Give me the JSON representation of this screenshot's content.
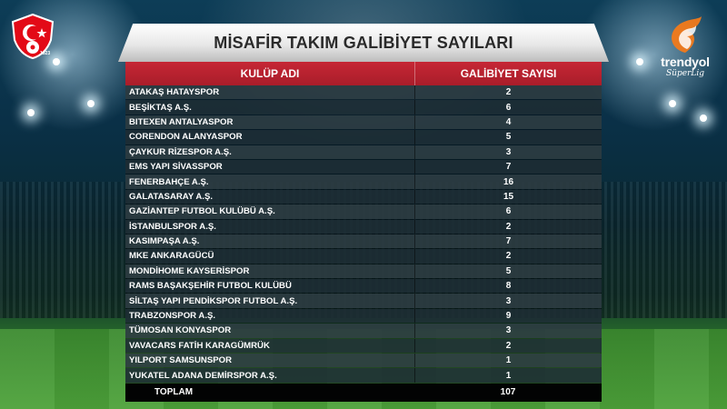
{
  "title": "MİSAFİR TAKIM GALİBİYET SAYILARI",
  "brand": {
    "name": "trendyol",
    "league": "SüperLig"
  },
  "federation_logo": {
    "year": "1923"
  },
  "colors": {
    "header_red": "#c62735",
    "federation_red": "#e30a17",
    "brand_orange": "#f27a1a"
  },
  "table": {
    "headers": {
      "club": "KULÜP ADI",
      "wins": "GALİBİYET SAYISI"
    },
    "rows": [
      {
        "club": "ATAKAŞ HATAYSPOR",
        "wins": "2"
      },
      {
        "club": "BEŞİKTAŞ A.Ş.",
        "wins": "6"
      },
      {
        "club": "BITEXEN ANTALYASPOR",
        "wins": "4"
      },
      {
        "club": "CORENDON ALANYASPOR",
        "wins": "5"
      },
      {
        "club": "ÇAYKUR RİZESPOR A.Ş.",
        "wins": "3"
      },
      {
        "club": "EMS YAPI SİVASSPOR",
        "wins": "7"
      },
      {
        "club": "FENERBAHÇE A.Ş.",
        "wins": "16"
      },
      {
        "club": "GALATASARAY A.Ş.",
        "wins": "15"
      },
      {
        "club": "GAZİANTEP FUTBOL KULÜBÜ A.Ş.",
        "wins": "6"
      },
      {
        "club": "İSTANBULSPOR A.Ş.",
        "wins": "2"
      },
      {
        "club": "KASIMPAŞA A.Ş.",
        "wins": "7"
      },
      {
        "club": "MKE ANKARAGÜCÜ",
        "wins": "2"
      },
      {
        "club": "MONDİHOME KAYSERİSPOR",
        "wins": "5"
      },
      {
        "club": "RAMS BAŞAKŞEHİR FUTBOL KULÜBÜ",
        "wins": "8"
      },
      {
        "club": "SİLTAŞ YAPI PENDİKSPOR FUTBOL A.Ş.",
        "wins": "3"
      },
      {
        "club": "TRABZONSPOR A.Ş.",
        "wins": "9"
      },
      {
        "club": "TÜMOSAN KONYASPOR",
        "wins": "3"
      },
      {
        "club": "VAVACARS FATİH KARAGÜMRÜK",
        "wins": "2"
      },
      {
        "club": "YILPORT SAMSUNSPOR",
        "wins": "1"
      },
      {
        "club": "YUKATEL ADANA DEMİRSPOR A.Ş.",
        "wins": "1"
      }
    ],
    "total": {
      "label": "TOPLAM",
      "value": "107"
    }
  }
}
